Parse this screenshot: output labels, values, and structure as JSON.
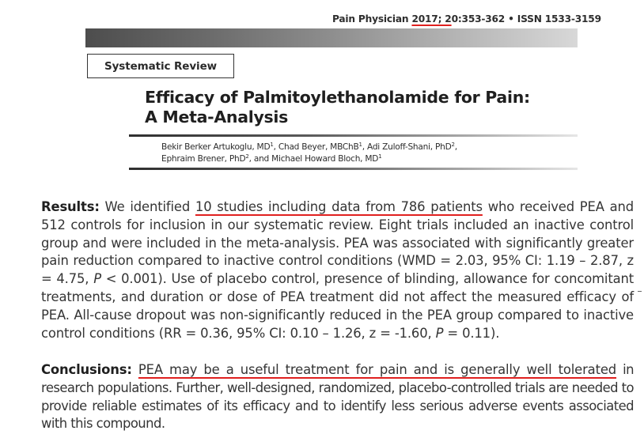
{
  "journal": {
    "name": "Pain Physician",
    "citation_underlined": "2017; 2",
    "citation_rest": "0:353-362",
    "separator": "•",
    "issn": "ISSN 1533-3159"
  },
  "article": {
    "category": "Systematic Review",
    "title_line1": "Efficacy of Palmitoylethanolamide for Pain:",
    "title_line2": "A Meta-Analysis",
    "authors": [
      {
        "name": "Bekir Berker Artukoglu, MD",
        "affiliation": "1"
      },
      {
        "name": "Chad Beyer, MBChB",
        "affiliation": "1"
      },
      {
        "name": "Adi Zuloff-Shani, PhD",
        "affiliation": "2"
      },
      {
        "name": "Ephraim Brener, PhD",
        "affiliation": "2"
      },
      {
        "name": "Michael Howard Bloch, MD",
        "affiliation": "1"
      }
    ],
    "authors_conjunction": "and"
  },
  "abstract": {
    "results": {
      "label": "Results:",
      "pre": "We identified",
      "highlight": "10 studies including data from 786 patients",
      "text1": "who received PEA and 512 controls for inclusion in our systematic review. Eight trials included an inactive control group and were included in the meta-analysis. PEA was associated with significantly greater pain reduction compared to inactive control conditions (WMD = 2.03, 95% CI: 1.19 – 2.87, z = 4.75,",
      "p_symbol": "P",
      "text2": "< 0.001). Use of placebo control, presence of blinding, allowance for concomitant treatments, and duration or dose of PEA treatment did not affect the measured efficacy of PEA. All-cause dropout was non-significantly reduced in the PEA group compared to inactive control conditions (RR = 0.36, 95% CI: 0.10 – 1.26, z = -1.60,",
      "text3": "= 0.11)."
    },
    "conclusions": {
      "label": "Conclusions:",
      "highlight": "PEA may be a useful treatment for pain and is generally well tolerated",
      "text": "in research populations. Further, well-designed, randomized, placebo-controlled trials are needed to provide reliable estimates of its efficacy and to identify less serious adverse events associated with this compound."
    }
  },
  "colors": {
    "underline_highlight": "#e0201f",
    "text": "#353535",
    "bar_dark": "#4d4d4d",
    "bar_light": "#d8d8d8"
  }
}
